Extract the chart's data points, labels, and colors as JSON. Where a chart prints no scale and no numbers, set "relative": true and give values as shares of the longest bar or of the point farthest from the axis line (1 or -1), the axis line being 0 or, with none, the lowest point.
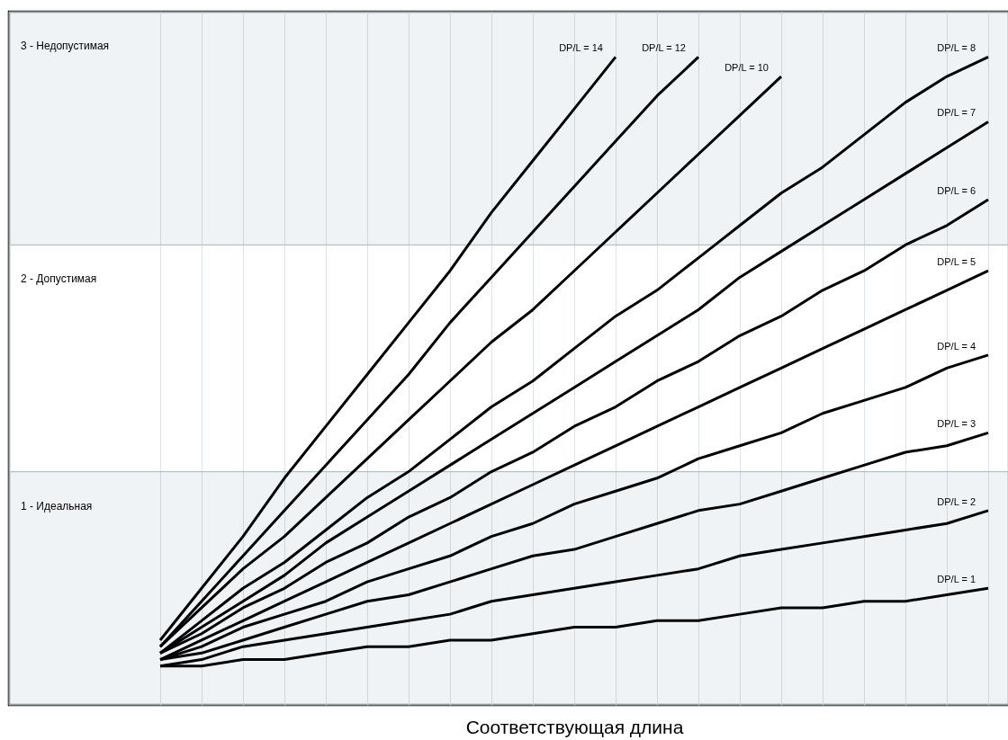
{
  "chart_data": {
    "type": "line",
    "relative": true,
    "xlabel": "Соответствующая длина",
    "grid": "x",
    "legend": false,
    "categories": [
      null,
      null,
      null,
      null,
      null,
      null,
      null,
      null,
      null,
      null,
      null,
      null,
      null,
      null,
      null,
      null,
      null,
      null,
      null,
      null,
      null
    ],
    "series": [
      {
        "name": "DP/L = 14",
        "color": "#000000",
        "values": [
          0.1,
          0.18,
          0.26,
          0.35,
          0.43,
          0.51,
          0.59,
          0.67,
          0.76,
          0.84,
          0.92,
          1.0,
          null,
          null,
          null,
          null,
          null,
          null,
          null,
          null,
          null
        ]
      },
      {
        "name": "DP/L = 12",
        "color": "#000000",
        "values": [
          0.09,
          0.16,
          0.23,
          0.3,
          0.37,
          0.44,
          0.51,
          0.59,
          0.66,
          0.73,
          0.8,
          0.87,
          0.94,
          1.0,
          null,
          null,
          null,
          null,
          null,
          null,
          null
        ]
      },
      {
        "name": "DP/L = 10",
        "color": "#000000",
        "values": [
          0.09,
          0.15,
          0.21,
          0.26,
          0.32,
          0.38,
          0.44,
          0.5,
          0.56,
          0.61,
          0.67,
          0.73,
          0.79,
          0.85,
          0.91,
          0.97,
          null,
          null,
          null,
          null,
          null
        ]
      },
      {
        "name": "DP/L = 8",
        "color": "#000000",
        "values": [
          0.08,
          0.13,
          0.18,
          0.22,
          0.27,
          0.32,
          0.36,
          0.41,
          0.46,
          0.5,
          0.55,
          0.6,
          0.64,
          0.69,
          0.74,
          0.79,
          0.83,
          0.88,
          0.93,
          0.97,
          1.0
        ]
      },
      {
        "name": "DP/L = 7",
        "color": "#000000",
        "values": [
          0.08,
          0.12,
          0.16,
          0.2,
          0.25,
          0.29,
          0.33,
          0.37,
          0.41,
          0.45,
          0.49,
          0.53,
          0.57,
          0.61,
          0.66,
          0.7,
          0.74,
          0.78,
          0.82,
          0.86,
          0.9
        ]
      },
      {
        "name": "DP/L = 6",
        "color": "#000000",
        "values": [
          0.08,
          0.11,
          0.15,
          0.18,
          0.22,
          0.25,
          0.29,
          0.32,
          0.36,
          0.39,
          0.43,
          0.46,
          0.5,
          0.53,
          0.57,
          0.6,
          0.64,
          0.67,
          0.71,
          0.74,
          0.78
        ]
      },
      {
        "name": "DP/L = 5",
        "color": "#000000",
        "values": [
          0.07,
          0.1,
          0.13,
          0.16,
          0.19,
          0.22,
          0.25,
          0.28,
          0.31,
          0.34,
          0.37,
          0.4,
          0.43,
          0.46,
          0.49,
          0.52,
          0.55,
          0.58,
          0.61,
          0.64,
          0.67
        ]
      },
      {
        "name": "DP/L = 4",
        "color": "#000000",
        "values": [
          0.07,
          0.09,
          0.12,
          0.14,
          0.16,
          0.19,
          0.21,
          0.23,
          0.26,
          0.28,
          0.31,
          0.33,
          0.35,
          0.38,
          0.4,
          0.42,
          0.45,
          0.47,
          0.49,
          0.52,
          0.54
        ]
      },
      {
        "name": "DP/L = 3",
        "color": "#000000",
        "values": [
          0.07,
          0.08,
          0.1,
          0.12,
          0.14,
          0.16,
          0.17,
          0.19,
          0.21,
          0.23,
          0.24,
          0.26,
          0.28,
          0.3,
          0.31,
          0.33,
          0.35,
          0.37,
          0.39,
          0.4,
          0.42
        ]
      },
      {
        "name": "DP/L = 2",
        "color": "#000000",
        "values": [
          0.06,
          0.07,
          0.09,
          0.1,
          0.11,
          0.12,
          0.13,
          0.14,
          0.16,
          0.17,
          0.18,
          0.19,
          0.2,
          0.21,
          0.23,
          0.24,
          0.25,
          0.26,
          0.27,
          0.28,
          0.3
        ]
      },
      {
        "name": "DP/L = 1",
        "color": "#000000",
        "values": [
          0.06,
          0.06,
          0.07,
          0.07,
          0.08,
          0.09,
          0.09,
          0.1,
          0.1,
          0.11,
          0.12,
          0.12,
          0.13,
          0.13,
          0.14,
          0.15,
          0.15,
          0.16,
          0.16,
          0.17,
          0.18
        ]
      }
    ],
    "bands": [
      {
        "axis": "y",
        "from": 0,
        "to": 0.36,
        "label": "1 - Идеальная",
        "color": "#e3eaec"
      },
      {
        "axis": "y",
        "from": 0.36,
        "to": 0.71,
        "label": "2 - Допустимая",
        "color": "#ffffff"
      },
      {
        "axis": "y",
        "from": 0.71,
        "to": 1.07,
        "label": "3 - Недопустимая",
        "color": "#e3eaec"
      }
    ]
  }
}
